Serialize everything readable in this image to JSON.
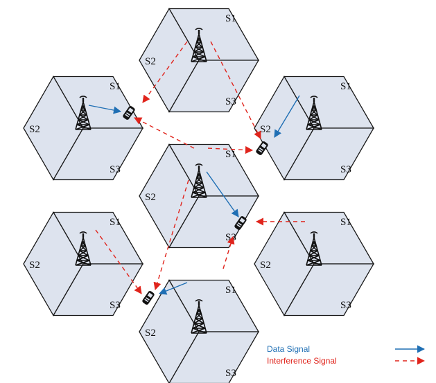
{
  "sector_labels": [
    "S1",
    "S2",
    "S3"
  ],
  "legend": {
    "data_signal": "Data Signal",
    "interference_signal": "Interference Signal"
  },
  "colors": {
    "data_signal": "#1f6fb4",
    "interference_signal": "#e0241c",
    "cell_fill": "#dde3ee",
    "edge": "#1a1a1a"
  },
  "icons": [
    "cell-tower-icon",
    "mobile-phone-icon"
  ]
}
